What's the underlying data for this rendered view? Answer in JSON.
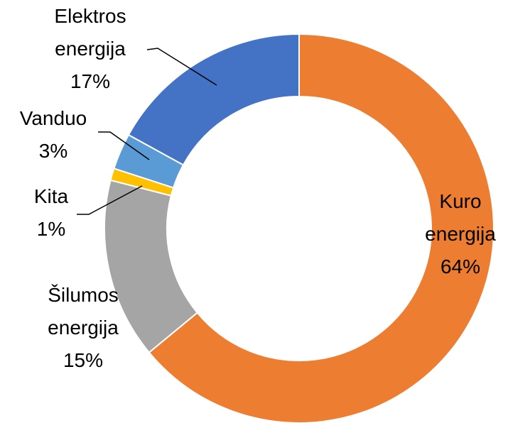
{
  "chart_data": {
    "type": "donut",
    "categories": [
      "Kuro energija",
      "Šilumos energija",
      "Kita",
      "Vanduo",
      "Elektros energija"
    ],
    "values": [
      64,
      15,
      1,
      3,
      17
    ],
    "value_labels": [
      "64%",
      "15%",
      "1%",
      "3%",
      "17%"
    ],
    "colors": [
      "#ED7D31",
      "#A5A5A5",
      "#FFC000",
      "#5B9BD5",
      "#4472C4"
    ]
  }
}
